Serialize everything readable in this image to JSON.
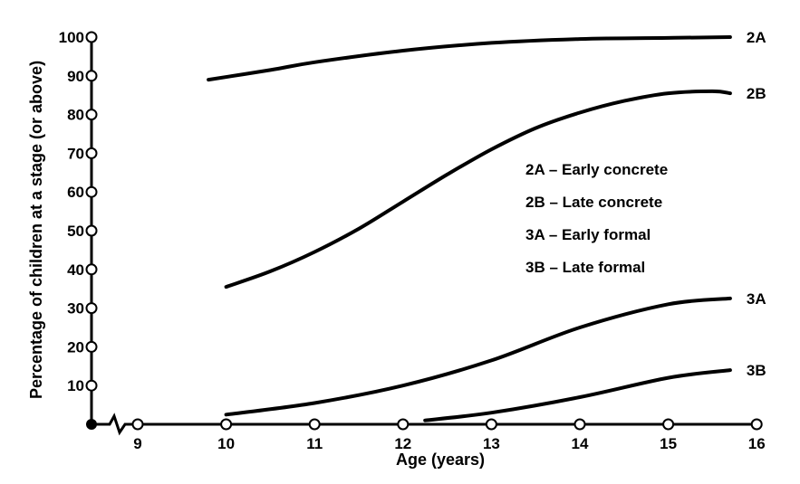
{
  "chart_data": {
    "type": "line",
    "xlabel": "Age (years)",
    "ylabel": "Percentage of children at a stage (or above)",
    "x_ticks": [
      9,
      10,
      11,
      12,
      13,
      14,
      15,
      16
    ],
    "y_ticks": [
      10,
      20,
      30,
      40,
      50,
      60,
      70,
      80,
      90,
      100
    ],
    "xlim": [
      8.5,
      16
    ],
    "ylim": [
      0,
      100
    ],
    "axis_break": true,
    "grid": false,
    "legend_position": "right, mid-height",
    "legend": [
      {
        "key": "2A",
        "label": "2A – Early concrete"
      },
      {
        "key": "2B",
        "label": "2B – Late concrete"
      },
      {
        "key": "3A",
        "label": "3A – Early formal"
      },
      {
        "key": "3B",
        "label": "3B – Late formal"
      }
    ],
    "series": [
      {
        "name": "2A",
        "x": [
          9.8,
          10.5,
          11,
          12,
          13,
          14,
          15,
          15.7
        ],
        "y": [
          89,
          91.5,
          93.5,
          96.5,
          98.5,
          99.5,
          99.8,
          100
        ]
      },
      {
        "name": "2B",
        "x": [
          10,
          10.5,
          11,
          11.5,
          12,
          12.5,
          13,
          13.5,
          14,
          14.5,
          15,
          15.5,
          15.7
        ],
        "y": [
          35.5,
          39.5,
          44.5,
          50.5,
          57.5,
          64.5,
          71,
          76.5,
          80.5,
          83.5,
          85.5,
          86,
          85.5
        ]
      },
      {
        "name": "3A",
        "x": [
          10,
          11,
          12,
          13,
          14,
          15,
          15.7
        ],
        "y": [
          2.5,
          5.5,
          10,
          16.5,
          25,
          31,
          32.5
        ]
      },
      {
        "name": "3B",
        "x": [
          12.25,
          13,
          14,
          15,
          15.7
        ],
        "y": [
          1,
          3,
          7,
          12,
          14
        ]
      }
    ]
  }
}
